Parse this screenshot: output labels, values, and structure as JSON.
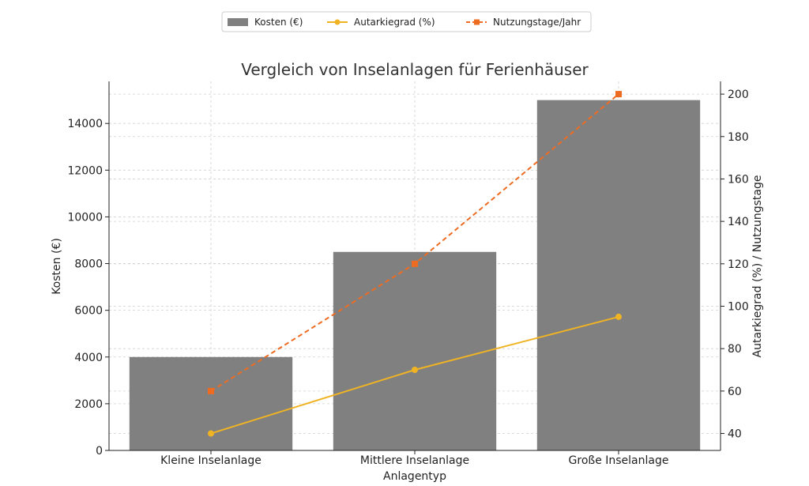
{
  "chart_data": {
    "type": "bar",
    "title": "Vergleich von Inselanlagen für Ferienhäuser",
    "xlabel": "Anlagentyp",
    "ylabel": "Kosten (€)",
    "y2label": "Autarkiegrad (%) / Nutzungstage",
    "categories": [
      "Kleine Inselanlage",
      "Mittlere Inselanlage",
      "Große Inselanlage"
    ],
    "ylim": [
      0,
      15800
    ],
    "y2lim": [
      32,
      206
    ],
    "yticks": [
      0,
      2000,
      4000,
      6000,
      8000,
      10000,
      12000,
      14000
    ],
    "y2ticks": [
      40,
      60,
      80,
      100,
      120,
      140,
      160,
      180,
      200
    ],
    "grid": true,
    "legend_position": "top-center",
    "series": [
      {
        "name": "Kosten (€)",
        "kind": "bar",
        "axis": "left",
        "color": "#808080",
        "values": [
          4000,
          8500,
          15000
        ]
      },
      {
        "name": "Autarkiegrad (%)",
        "kind": "line",
        "axis": "right",
        "color": "#f0b323",
        "marker": "circle",
        "dash": "solid",
        "values": [
          40,
          70,
          95
        ]
      },
      {
        "name": "Nutzungstage/Jahr",
        "kind": "line",
        "axis": "right",
        "color": "#ee6c22",
        "marker": "square",
        "dash": "dashed",
        "values": [
          60,
          120,
          200
        ]
      }
    ]
  }
}
